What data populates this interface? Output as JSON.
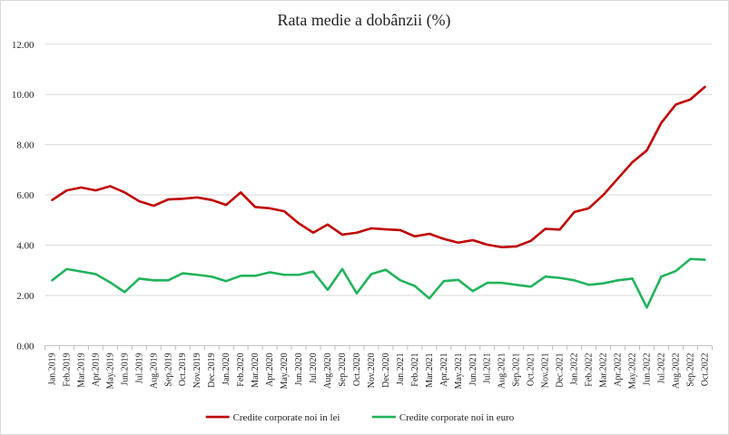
{
  "chart_data": {
    "type": "line",
    "title": "Rata medie a dobânzii (%)",
    "xlabel": "",
    "ylabel": "",
    "ylim": [
      0,
      12
    ],
    "yticks": [
      "0.00",
      "2.00",
      "4.00",
      "6.00",
      "8.00",
      "10.00",
      "12.00"
    ],
    "grid": true,
    "legend_position": "bottom",
    "categories": [
      "Jan.2019",
      "Feb.2019",
      "Mar.2019",
      "Apr.2019",
      "May.2019",
      "Jun.2019",
      "Jul.2019",
      "Aug.2019",
      "Sep.2019",
      "Oct.2019",
      "Nov.2019",
      "Dec.2019",
      "Jan.2020",
      "Feb.2020",
      "Mar.2020",
      "Apr.2020",
      "May.2020",
      "Jun.2020",
      "Jul.2020",
      "Aug.2020",
      "Sep.2020",
      "Oct.2020",
      "Nov.2020",
      "Dec.2020",
      "Jan.2021",
      "Feb.2021",
      "Mar.2021",
      "Apr.2021",
      "May.2021",
      "Jun.2021",
      "Jul.2021",
      "Aug.2021",
      "Sep.2021",
      "Oct.2021",
      "Nov.2021",
      "Dec.2021",
      "Jan.2022",
      "Feb.2022",
      "Mar.2022",
      "Apr.2022",
      "May.2022",
      "Jun.2022",
      "Jul.2022",
      "Aug.2022",
      "Sep.2022",
      "Oct.2022"
    ],
    "series": [
      {
        "name": "Credite corporate noi in lei",
        "color": "#c00000",
        "values": [
          5.8,
          6.18,
          6.3,
          6.18,
          6.35,
          6.1,
          5.75,
          5.57,
          5.82,
          5.85,
          5.9,
          5.8,
          5.6,
          6.1,
          5.52,
          5.47,
          5.35,
          4.87,
          4.5,
          4.82,
          4.42,
          4.5,
          4.67,
          4.63,
          4.6,
          4.35,
          4.45,
          4.25,
          4.1,
          4.2,
          4.02,
          3.92,
          3.95,
          4.17,
          4.65,
          4.62,
          5.32,
          5.47,
          6.0,
          6.65,
          7.3,
          7.77,
          8.87,
          9.6,
          9.8,
          10.3
        ]
      },
      {
        "name": "Credite corporate noi in euro",
        "color": "#21b35b",
        "values": [
          2.6,
          3.05,
          2.95,
          2.85,
          2.52,
          2.13,
          2.67,
          2.6,
          2.6,
          2.88,
          2.82,
          2.75,
          2.57,
          2.78,
          2.78,
          2.92,
          2.82,
          2.82,
          2.95,
          2.22,
          3.05,
          2.08,
          2.85,
          3.02,
          2.6,
          2.38,
          1.88,
          2.57,
          2.62,
          2.17,
          2.5,
          2.5,
          2.42,
          2.35,
          2.75,
          2.7,
          2.6,
          2.42,
          2.48,
          2.6,
          2.67,
          1.52,
          2.75,
          2.97,
          3.45,
          3.42
        ]
      }
    ]
  }
}
